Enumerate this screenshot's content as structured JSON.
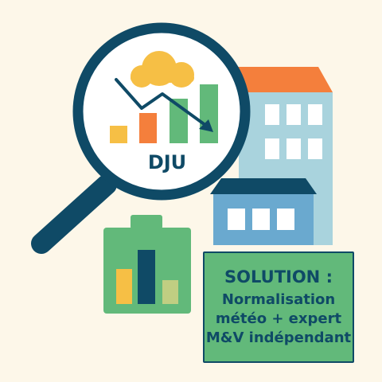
{
  "magnifier": {
    "label": "DJU"
  },
  "solution": {
    "title": "SOLUTION :",
    "lines": [
      "Normalisation",
      "météo + expert",
      "M&V indépendant"
    ]
  },
  "colors": {
    "background": "#fdf7e9",
    "navy": "#0f4a66",
    "green": "#62b97a",
    "orange": "#f47f3c",
    "yellow": "#f6bf45",
    "light_blue": "#a9d3dd",
    "blue": "#6aa9cf",
    "olive": "#c0ce82"
  },
  "icons": [
    "magnifying-glass-icon",
    "cloud-icon",
    "bar-chart-icon",
    "trend-down-arrow-icon",
    "building-icon",
    "battery-chart-icon"
  ]
}
